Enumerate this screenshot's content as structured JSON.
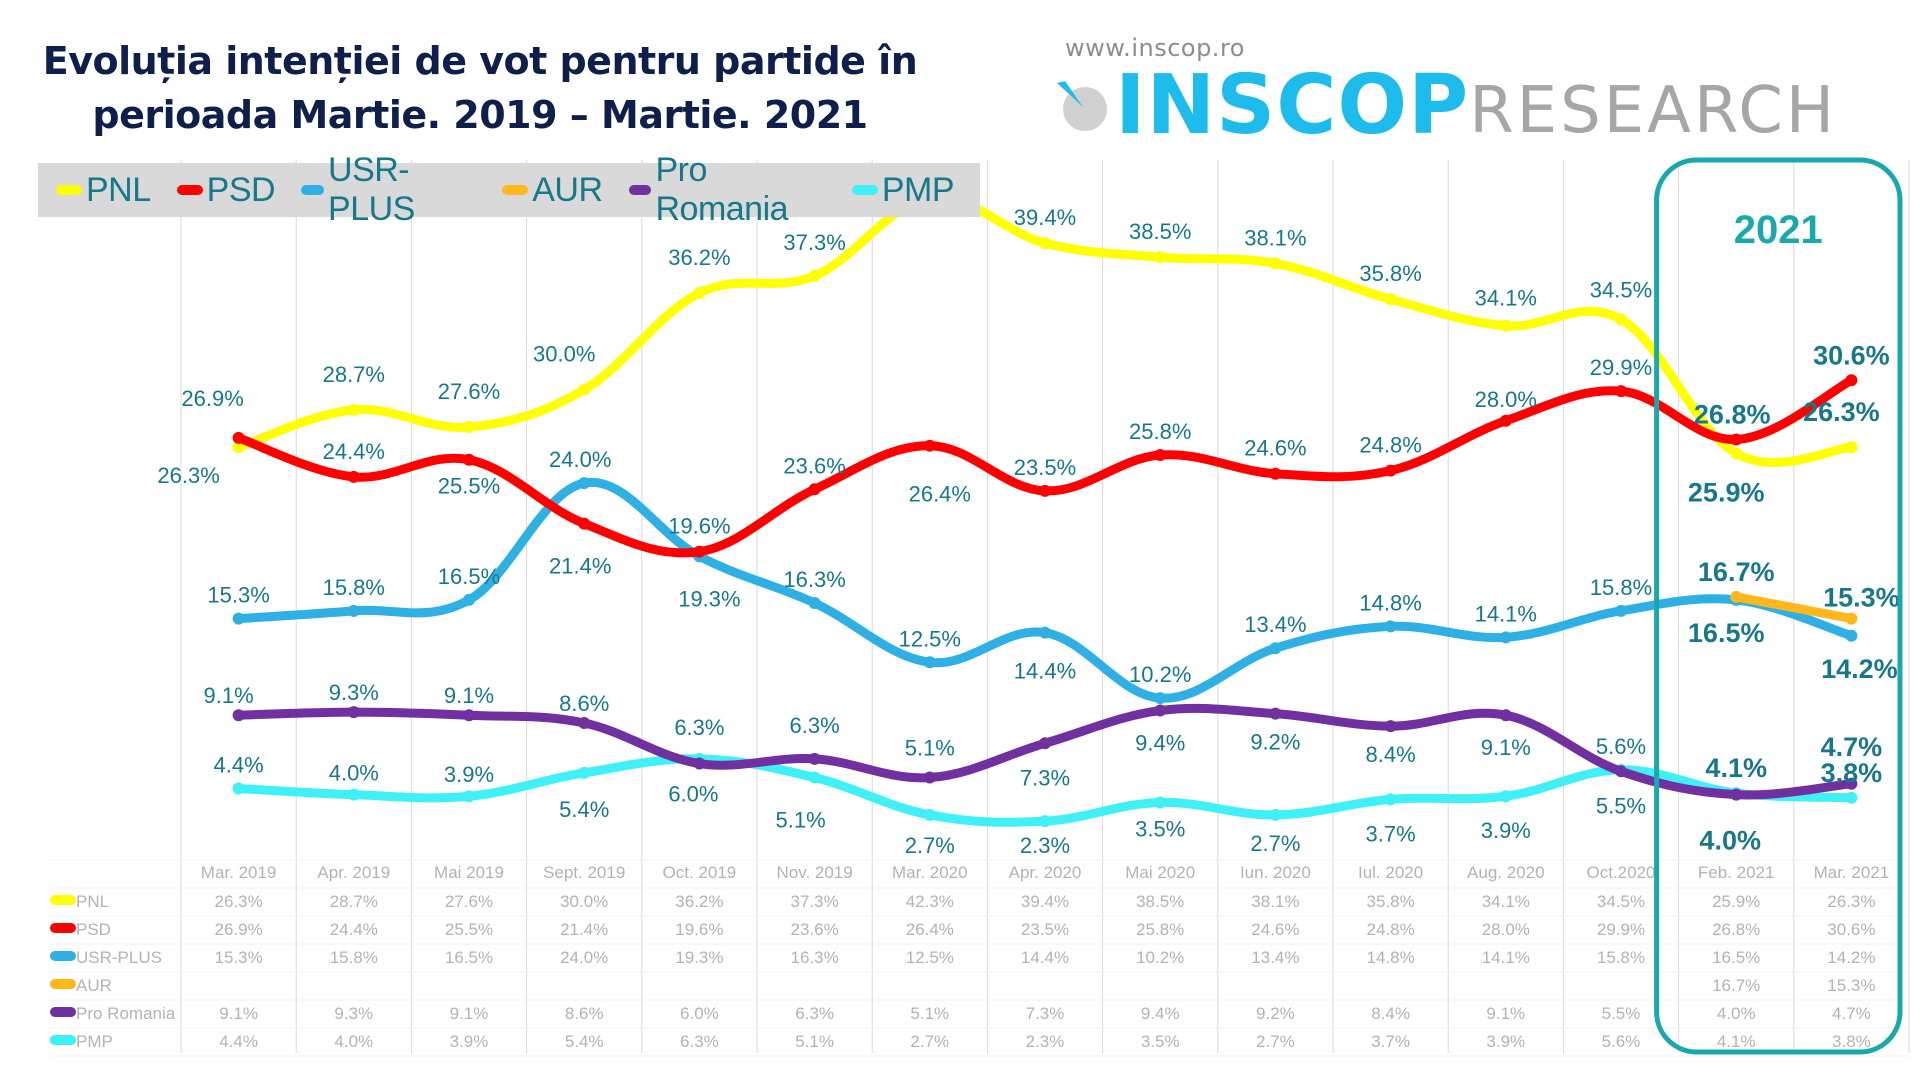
{
  "header": {
    "title_line1": "Evoluția intenției de vot pentru partide în",
    "title_line2": "perioada Martie. 2019 – Martie. 2021",
    "logo_url_text": "www.inscop.ro",
    "logo_main": "INSCOP",
    "logo_sub": "RESEARCH"
  },
  "highlight": {
    "label": "2021",
    "color": "#19a9ad",
    "from_category": "Feb. 2021",
    "to_category": "Mar. 2021"
  },
  "chart_data": {
    "type": "line",
    "title": "Evoluția intenției de vot pentru partide în perioada Martie. 2019 – Martie. 2021",
    "xlabel": "",
    "ylabel": "",
    "ylim": [
      0,
      45
    ],
    "grid": "vertical",
    "legend_position": "top-left",
    "smooth": true,
    "categories": [
      "Mar. 2019",
      "Apr. 2019",
      "Mai 2019",
      "Sept. 2019",
      "Oct. 2019",
      "Nov. 2019",
      "Mar. 2020",
      "Apr. 2020",
      "Mai 2020",
      "Iun. 2020",
      "Iul. 2020",
      "Aug. 2020",
      "Oct.2020",
      "Feb. 2021",
      "Mar. 2021"
    ],
    "series": [
      {
        "name": "PNL",
        "color": "#ffff00",
        "values": [
          26.3,
          28.7,
          27.6,
          30.0,
          36.2,
          37.3,
          42.3,
          39.4,
          38.5,
          38.1,
          35.8,
          34.1,
          34.5,
          25.9,
          26.3
        ]
      },
      {
        "name": "PSD",
        "color": "#ff0000",
        "values": [
          26.9,
          24.4,
          25.5,
          21.4,
          19.6,
          23.6,
          26.4,
          23.5,
          25.8,
          24.6,
          24.8,
          28.0,
          29.9,
          26.8,
          30.6
        ]
      },
      {
        "name": "USR-PLUS",
        "color": "#2eb0e4",
        "values": [
          15.3,
          15.8,
          16.5,
          24.0,
          19.3,
          16.3,
          12.5,
          14.4,
          10.2,
          13.4,
          14.8,
          14.1,
          15.8,
          16.5,
          14.2
        ]
      },
      {
        "name": "AUR",
        "color": "#ffb81c",
        "values": [
          null,
          null,
          null,
          null,
          null,
          null,
          null,
          null,
          null,
          null,
          null,
          null,
          null,
          16.7,
          15.3
        ]
      },
      {
        "name": "Pro Romania",
        "color": "#7030a0",
        "values": [
          9.1,
          9.3,
          9.1,
          8.6,
          6.0,
          6.3,
          5.1,
          7.3,
          9.4,
          9.2,
          8.4,
          9.1,
          5.5,
          4.0,
          4.7
        ]
      },
      {
        "name": "PMP",
        "color": "#3ff0f6",
        "values": [
          4.4,
          4.0,
          3.9,
          5.4,
          6.3,
          5.1,
          2.7,
          2.3,
          3.5,
          2.7,
          3.7,
          3.9,
          5.6,
          4.1,
          3.8
        ]
      }
    ],
    "data_labels": [
      {
        "series": "PNL",
        "labels": [
          "26.3%",
          "28.7%",
          "27.6%",
          "30.0%",
          "36.2%",
          "37.3%",
          "42.3%",
          "39.4%",
          "38.5%",
          "38.1%",
          "35.8%",
          "34.1%",
          "34.5%",
          "25.9%",
          "26.3%"
        ]
      },
      {
        "series": "PSD",
        "labels": [
          "26.9%",
          "24.4%",
          "25.5%",
          "21.4%",
          "19.6%",
          "23.6%",
          "26.4%",
          "23.5%",
          "25.8%",
          "24.6%",
          "24.8%",
          "28.0%",
          "29.9%",
          "26.8%",
          "30.6%"
        ]
      },
      {
        "series": "USR-PLUS",
        "labels": [
          "15.3%",
          "15.8%",
          "16.5%",
          "24.0%",
          "19.3%",
          "16.3%",
          "12.5%",
          "14.4%",
          "10.2%",
          "13.4%",
          "14.8%",
          "14.1%",
          "15.8%",
          "16.5%",
          "14.2%"
        ]
      },
      {
        "series": "AUR",
        "labels": [
          "",
          "",
          "",
          "",
          "",
          "",
          "",
          "",
          "",
          "",
          "",
          "",
          "",
          "16.7%",
          "15.3%"
        ]
      },
      {
        "series": "Pro Romania",
        "labels": [
          "9.1%",
          "9.3%",
          "9.1%",
          "8.6%",
          "6.0%",
          "6.3%",
          "5.1%",
          "7.3%",
          "9.4%",
          "9.2%",
          "8.4%",
          "9.1%",
          "5.5%",
          "4.0%",
          "4.7%"
        ]
      },
      {
        "series": "PMP",
        "labels": [
          "4.4%",
          "4.0%",
          "3.9%",
          "5.4%",
          "6.3%",
          "5.1%",
          "2.7%",
          "2.3%",
          "3.5%",
          "2.7%",
          "3.7%",
          "3.9%",
          "5.6%",
          "4.1%",
          "3.8%"
        ]
      }
    ],
    "table": {
      "type": "table",
      "columns": [
        "Mar. 2019",
        "Apr. 2019",
        "Mai 2019",
        "Sept. 2019",
        "Oct. 2019",
        "Nov. 2019",
        "Mar. 2020",
        "Apr. 2020",
        "Mai 2020",
        "Iun. 2020",
        "Iul. 2020",
        "Aug. 2020",
        "Oct.2020",
        "Feb. 2021",
        "Mar. 2021"
      ],
      "rows": [
        {
          "name": "PNL",
          "cells": [
            "26.3%",
            "28.7%",
            "27.6%",
            "30.0%",
            "36.2%",
            "37.3%",
            "42.3%",
            "39.4%",
            "38.5%",
            "38.1%",
            "35.8%",
            "34.1%",
            "34.5%",
            "25.9%",
            "26.3%"
          ]
        },
        {
          "name": "PSD",
          "cells": [
            "26.9%",
            "24.4%",
            "25.5%",
            "21.4%",
            "19.6%",
            "23.6%",
            "26.4%",
            "23.5%",
            "25.8%",
            "24.6%",
            "24.8%",
            "28.0%",
            "29.9%",
            "26.8%",
            "30.6%"
          ]
        },
        {
          "name": "USR-PLUS",
          "cells": [
            "15.3%",
            "15.8%",
            "16.5%",
            "24.0%",
            "19.3%",
            "16.3%",
            "12.5%",
            "14.4%",
            "10.2%",
            "13.4%",
            "14.8%",
            "14.1%",
            "15.8%",
            "16.5%",
            "14.2%"
          ]
        },
        {
          "name": "AUR",
          "cells": [
            "",
            "",
            "",
            "",
            "",
            "",
            "",
            "",
            "",
            "",
            "",
            "",
            "",
            "16.7%",
            "15.3%"
          ]
        },
        {
          "name": "Pro Romania",
          "cells": [
            "9.1%",
            "9.3%",
            "9.1%",
            "8.6%",
            "6.0%",
            "6.3%",
            "5.1%",
            "7.3%",
            "9.4%",
            "9.2%",
            "8.4%",
            "9.1%",
            "5.5%",
            "4.0%",
            "4.7%"
          ]
        },
        {
          "name": "PMP",
          "cells": [
            "4.4%",
            "4.0%",
            "3.9%",
            "5.4%",
            "6.3%",
            "5.1%",
            "2.7%",
            "2.3%",
            "3.5%",
            "2.7%",
            "3.7%",
            "3.9%",
            "5.6%",
            "4.1%",
            "3.8%"
          ]
        }
      ]
    }
  }
}
